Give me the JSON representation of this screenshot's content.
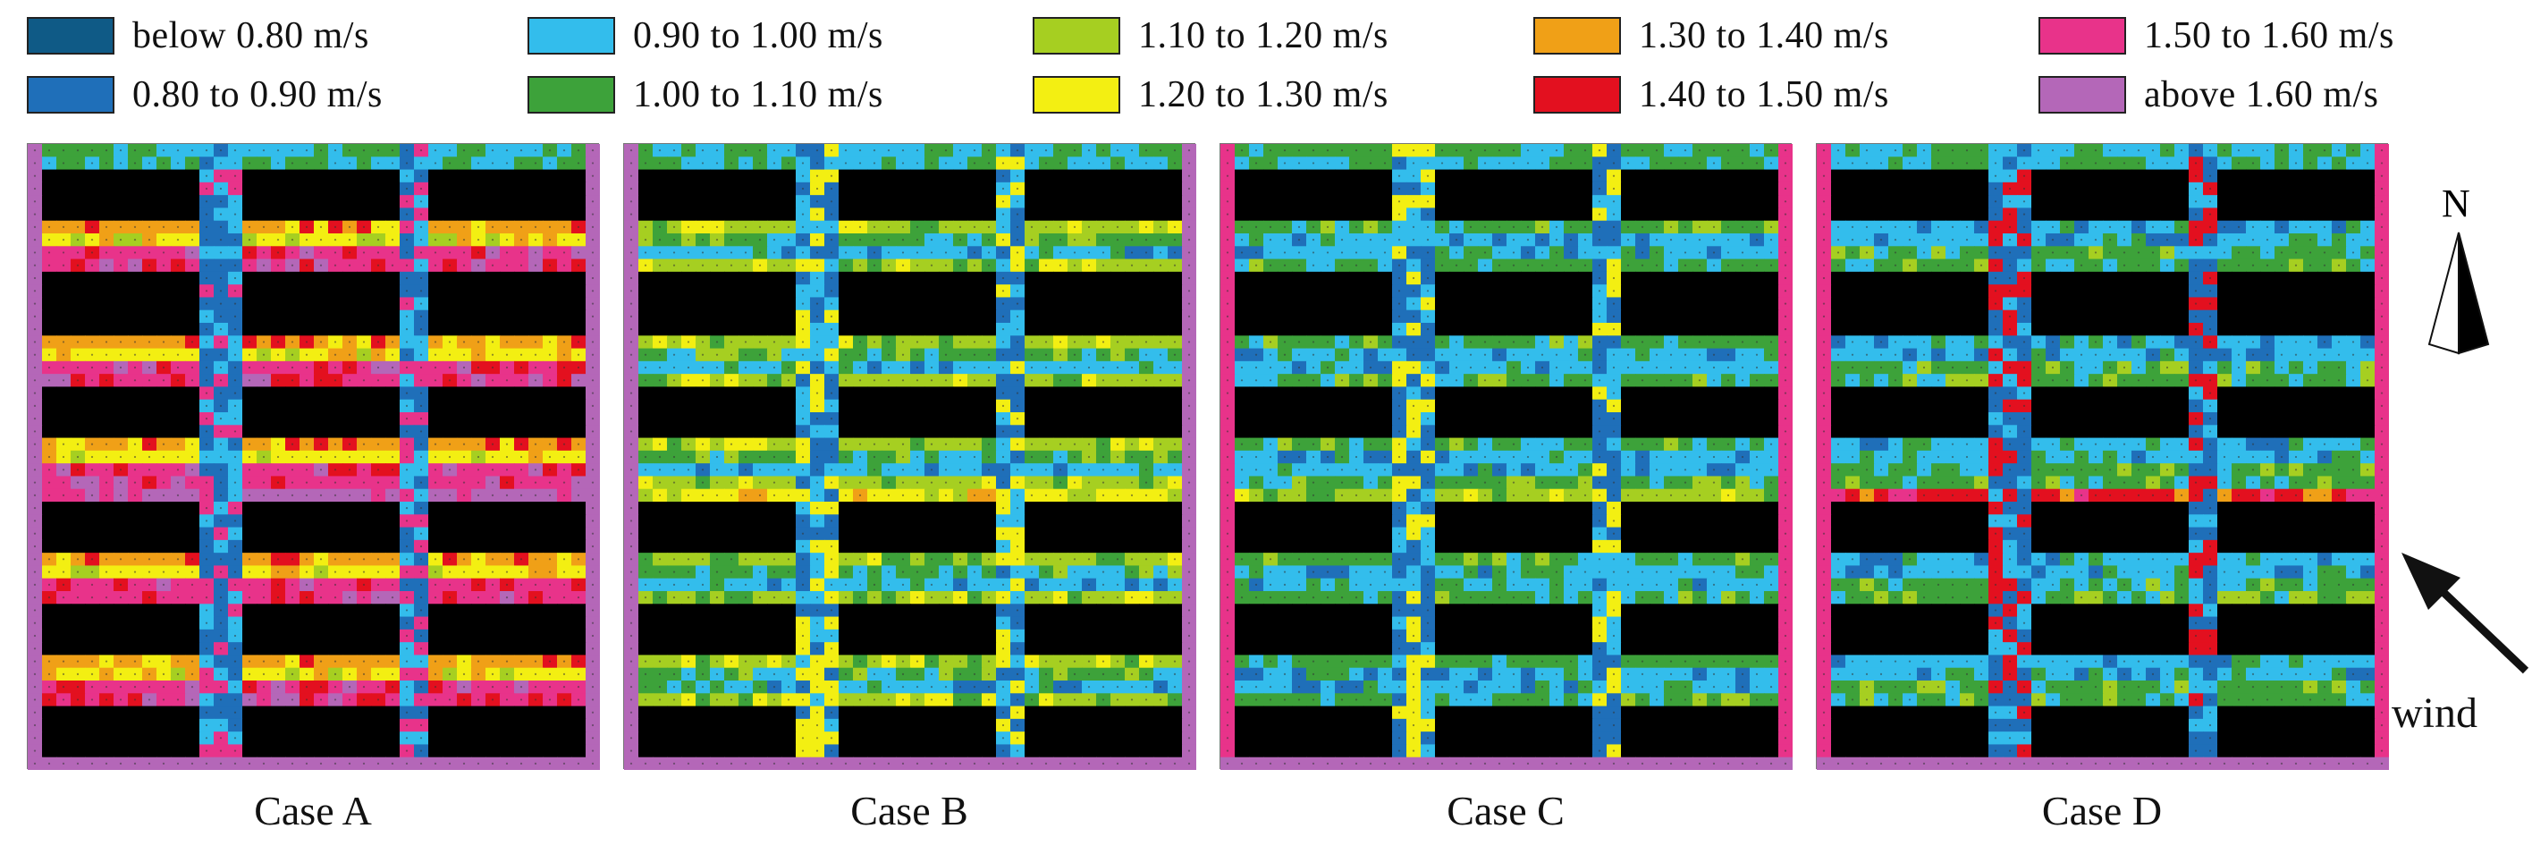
{
  "legend": {
    "items": [
      {
        "label": "below 0.80 m/s",
        "color": "#0f5a86"
      },
      {
        "label": "0.80 to 0.90 m/s",
        "color": "#1f6fb9"
      },
      {
        "label": "0.90 to 1.00 m/s",
        "color": "#33bdec"
      },
      {
        "label": "1.00 to 1.10 m/s",
        "color": "#3da23a"
      },
      {
        "label": "1.10 to 1.20 m/s",
        "color": "#a6cf21"
      },
      {
        "label": "1.20 to 1.30 m/s",
        "color": "#f3ef12"
      },
      {
        "label": "1.30 to 1.40 m/s",
        "color": "#f0a017"
      },
      {
        "label": "1.40 to 1.50 m/s",
        "color": "#e3101f"
      },
      {
        "label": "1.50 to 1.60 m/s",
        "color": "#e8338a"
      },
      {
        "label": "above 1.60 m/s",
        "color": "#b467b8"
      }
    ]
  },
  "panels": [
    {
      "label": "Case A"
    },
    {
      "label": "Case B"
    },
    {
      "label": "Case C"
    },
    {
      "label": "Case D"
    }
  ],
  "compass": {
    "label": "N"
  },
  "wind": {
    "label": "wind"
  },
  "colors": {
    "building": "#000000",
    "dots": "#333333"
  }
}
